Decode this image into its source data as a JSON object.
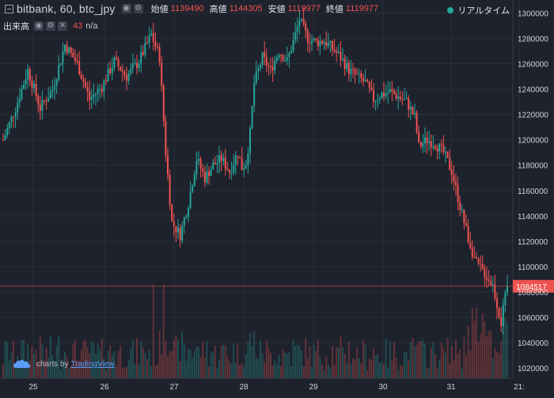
{
  "header": {
    "symbol": "bitbank, 60, btc_jpy",
    "open_label": "始値",
    "open": "1139490",
    "high_label": "高値",
    "high": "1144305",
    "low_label": "安値",
    "low": "1119977",
    "close_label": "終値",
    "close": "1119977",
    "realtime": "リアルタイム"
  },
  "volume_legend": {
    "name": "出来高",
    "value": "43",
    "ma": "n/a"
  },
  "watermark": {
    "prefix": "charts by",
    "brand": "TradingView"
  },
  "colors": {
    "up": "#26a69a",
    "down": "#ef5350",
    "bg": "#1e222d",
    "grid": "#2a2e39",
    "axis_text": "#d1d4dc",
    "price_line": "#ef5350"
  },
  "chart_data": {
    "type": "candlestick",
    "timeframe": "60",
    "x_ticks": [
      "25",
      "26",
      "27",
      "28",
      "29",
      "30",
      "31",
      "21:"
    ],
    "y_ticks": [
      1020000,
      1040000,
      1060000,
      1080000,
      1100000,
      1120000,
      1140000,
      1160000,
      1180000,
      1200000,
      1220000,
      1240000,
      1260000,
      1280000,
      1300000
    ],
    "ylim": [
      1012000,
      1309000
    ],
    "last_price": 1084517,
    "price_path": [
      [
        0,
        1200000
      ],
      [
        6,
        1225000
      ],
      [
        12,
        1255000
      ],
      [
        18,
        1225000
      ],
      [
        24,
        1240000
      ],
      [
        30,
        1275000
      ],
      [
        36,
        1260000
      ],
      [
        42,
        1232000
      ],
      [
        48,
        1242000
      ],
      [
        54,
        1262000
      ],
      [
        60,
        1250000
      ],
      [
        66,
        1262000
      ],
      [
        72,
        1283000
      ],
      [
        76,
        1265000
      ],
      [
        79,
        1190000
      ],
      [
        82,
        1135000
      ],
      [
        86,
        1125000
      ],
      [
        90,
        1150000
      ],
      [
        94,
        1185000
      ],
      [
        98,
        1170000
      ],
      [
        102,
        1180000
      ],
      [
        106,
        1185000
      ],
      [
        110,
        1175000
      ],
      [
        114,
        1190000
      ],
      [
        116,
        1178000
      ],
      [
        118,
        1182000
      ],
      [
        120,
        1205000
      ],
      [
        122,
        1245000
      ],
      [
        126,
        1265000
      ],
      [
        130,
        1255000
      ],
      [
        134,
        1270000
      ],
      [
        138,
        1262000
      ],
      [
        142,
        1283000
      ],
      [
        144,
        1295000
      ],
      [
        148,
        1280000
      ],
      [
        152,
        1277000
      ],
      [
        156,
        1278000
      ],
      [
        160,
        1272000
      ],
      [
        164,
        1265000
      ],
      [
        168,
        1255000
      ],
      [
        172,
        1250000
      ],
      [
        176,
        1245000
      ],
      [
        180,
        1232000
      ],
      [
        184,
        1236000
      ],
      [
        188,
        1238000
      ],
      [
        192,
        1234000
      ],
      [
        196,
        1230000
      ],
      [
        200,
        1218000
      ],
      [
        202,
        1195000
      ],
      [
        206,
        1200000
      ],
      [
        210,
        1197000
      ],
      [
        214,
        1190000
      ],
      [
        218,
        1175000
      ],
      [
        222,
        1148000
      ],
      [
        226,
        1122000
      ],
      [
        230,
        1102000
      ],
      [
        234,
        1095000
      ],
      [
        238,
        1085000
      ],
      [
        242,
        1056000
      ],
      [
        245,
        1085000
      ]
    ],
    "volume_max": 470
  }
}
